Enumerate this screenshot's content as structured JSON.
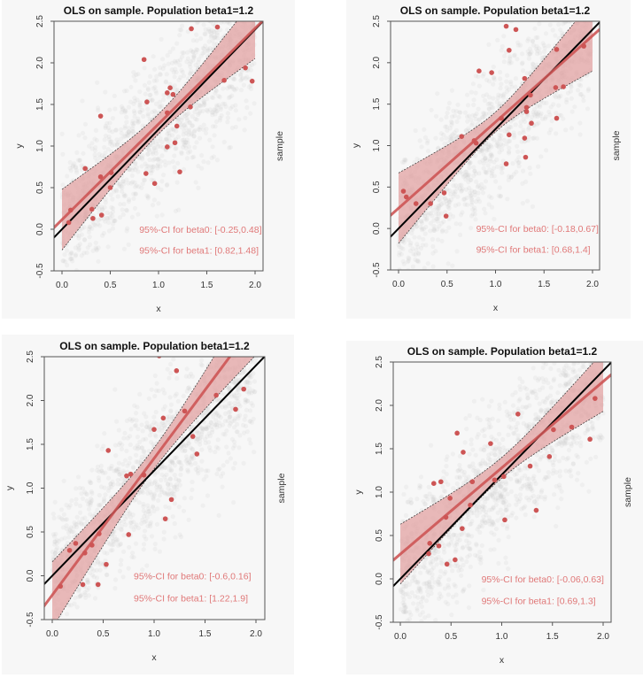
{
  "chart_data": [
    {
      "type": "scatter",
      "title": "OLS on sample. Population beta1=1.2",
      "xlabel": "x",
      "ylabel": "y",
      "right_label": "sample",
      "xlim": [
        -0.08,
        2.08
      ],
      "ylim": [
        -0.5,
        2.5
      ],
      "x_ticks": [
        "0.0",
        "0.5",
        "1.0",
        "1.5",
        "2.0"
      ],
      "y_ticks": [
        "-0.5",
        "0.0",
        "0.5",
        "1.0",
        "1.5",
        "2.0",
        "2.5"
      ],
      "population_line": {
        "beta0": 0,
        "beta1": 1.2
      },
      "fit_line": {
        "beta0": 0.115,
        "beta1": 1.15
      },
      "ci_beta0": [
        -0.25,
        0.48
      ],
      "ci_beta1": [
        0.82,
        1.48
      ],
      "ci_text": [
        "95%-CI for beta0: [-0.25,0.48]",
        "95%-CI for beta1: [0.82,1.48]"
      ],
      "sample": {
        "x": [
          1.34,
          1.61,
          0.85,
          1.9,
          1.97,
          1.68,
          1.12,
          1.09,
          1.15,
          0.88,
          1.33,
          0.4,
          1.09,
          1.19,
          1.09,
          1.17,
          0.24,
          0.87,
          1.22,
          0.96,
          0.5,
          0.4,
          0.51,
          0.31,
          0.32,
          0.41,
          0.09,
          0.07
        ],
        "y": [
          2.41,
          2.43,
          2.04,
          1.94,
          1.78,
          1.79,
          1.7,
          1.64,
          1.62,
          1.53,
          1.47,
          1.36,
          1.4,
          1.24,
          0.99,
          1.04,
          0.73,
          0.67,
          0.69,
          0.55,
          0.5,
          0.63,
          0.68,
          0.24,
          0.13,
          0.17,
          0.23,
          0.08
        ]
      }
    },
    {
      "type": "scatter",
      "title": "OLS on sample. Population beta1=1.2",
      "xlabel": "x",
      "ylabel": "y",
      "right_label": "sample",
      "xlim": [
        -0.08,
        2.08
      ],
      "ylim": [
        -0.5,
        2.5
      ],
      "x_ticks": [
        "0.0",
        "0.5",
        "1.0",
        "1.5",
        "2.0"
      ],
      "y_ticks": [
        "-0.5",
        "0.0",
        "0.5",
        "1.0",
        "1.5",
        "2.0",
        "2.5"
      ],
      "population_line": {
        "beta0": 0,
        "beta1": 1.2
      },
      "fit_line": {
        "beta0": 0.245,
        "beta1": 1.04
      },
      "ci_beta0": [
        -0.18,
        0.67
      ],
      "ci_beta1": [
        0.68,
        1.4
      ],
      "ci_text": [
        "95%-CI for beta0: [-0.18,0.67]",
        "95%-CI for beta1: [0.68,1.4]"
      ],
      "sample": {
        "x": [
          1.11,
          1.21,
          1.14,
          0.83,
          0.96,
          1.63,
          1.91,
          1.3,
          1.62,
          1.7,
          1.36,
          1.32,
          1.32,
          1.37,
          1.63,
          1.06,
          1.14,
          1.3,
          0.65,
          0.78,
          0.8,
          1.31,
          1.11,
          0.05,
          0.08,
          0.18,
          0.33,
          0.47,
          0.49
        ],
        "y": [
          2.44,
          2.4,
          2.15,
          1.9,
          1.88,
          2.16,
          2.2,
          1.81,
          1.7,
          1.71,
          1.61,
          1.46,
          1.41,
          1.27,
          1.33,
          1.33,
          1.13,
          1.09,
          1.11,
          1.06,
          1.03,
          0.86,
          0.78,
          0.45,
          0.38,
          0.3,
          0.3,
          0.43,
          0.15
        ]
      }
    },
    {
      "type": "scatter",
      "title": "OLS on sample. Population beta1=1.2",
      "xlabel": "x",
      "ylabel": "y",
      "right_label": "sample",
      "xlim": [
        -0.08,
        2.08
      ],
      "ylim": [
        -0.5,
        2.5
      ],
      "x_ticks": [
        "0.0",
        "0.5",
        "1.0",
        "1.5",
        "2.0"
      ],
      "y_ticks": [
        "-0.5",
        "0.0",
        "0.5",
        "1.0",
        "1.5",
        "2.0",
        "2.5"
      ],
      "population_line": {
        "beta0": 0,
        "beta1": 1.2
      },
      "fit_line": {
        "beta0": -0.22,
        "beta1": 1.56
      },
      "ci_beta0": [
        -0.6,
        0.16
      ],
      "ci_beta1": [
        1.22,
        1.9
      ],
      "ci_text": [
        "95%-CI for beta0: [-0.6,0.16]",
        "95%-CI for beta1: [1.22,1.9]"
      ],
      "sample": {
        "x": [
          1.05,
          1.22,
          1.61,
          1.88,
          1.8,
          1.3,
          1.09,
          1.0,
          1.38,
          1.42,
          0.55,
          0.77,
          0.73,
          0.9,
          1.17,
          1.11,
          0.75,
          0.46,
          0.39,
          0.23,
          0.17,
          0.32,
          0.53,
          0.3,
          0.45,
          0.08
        ],
        "y": [
          2.51,
          2.34,
          2.06,
          2.13,
          1.9,
          1.88,
          1.8,
          1.67,
          1.59,
          1.39,
          1.43,
          1.16,
          1.14,
          1.15,
          0.87,
          0.65,
          0.47,
          0.48,
          0.35,
          0.37,
          0.29,
          0.26,
          0.13,
          -0.1,
          -0.1,
          -0.12
        ]
      }
    },
    {
      "type": "scatter",
      "title": "OLS on sample. Population beta1=1.2",
      "xlabel": "x",
      "ylabel": "y",
      "right_label": "sample",
      "xlim": [
        -0.08,
        2.08
      ],
      "ylim": [
        -0.5,
        2.5
      ],
      "x_ticks": [
        "0.0",
        "0.5",
        "1.0",
        "1.5",
        "2.0"
      ],
      "y_ticks": [
        "-0.5",
        "0.0",
        "0.5",
        "1.0",
        "1.5",
        "2.0",
        "2.5"
      ],
      "population_line": {
        "beta0": 0,
        "beta1": 1.2
      },
      "fit_line": {
        "beta0": 0.285,
        "beta1": 0.995
      },
      "ci_beta0": [
        -0.06,
        0.63
      ],
      "ci_beta1": [
        0.69,
        1.3
      ],
      "ci_text": [
        "95%-CI for beta0: [-0.06,0.63]",
        "95%-CI for beta1: [0.69,1.3]"
      ],
      "sample": {
        "x": [
          1.92,
          1.16,
          1.51,
          1.69,
          1.87,
          1.47,
          1.28,
          0.56,
          0.89,
          0.62,
          0.33,
          0.4,
          0.71,
          0.93,
          1.02,
          0.49,
          0.69,
          0.45,
          1.03,
          1.34,
          0.61,
          0.29,
          0.38,
          0.28,
          0.46,
          0.54
        ],
        "y": [
          2.08,
          1.9,
          1.72,
          1.75,
          1.61,
          1.41,
          1.3,
          1.68,
          1.56,
          1.46,
          1.1,
          1.12,
          1.12,
          1.14,
          1.18,
          0.93,
          0.85,
          0.71,
          0.68,
          0.79,
          0.58,
          0.41,
          0.38,
          0.29,
          0.17,
          0.22
        ]
      }
    }
  ],
  "colors": {
    "sample_point": "#cd5555",
    "fit_line": "#cd5555",
    "ci_band": "#e3a3a3",
    "ci_text": "#e07878",
    "population_line": "#000000",
    "population_cloud": "#c4c4c4",
    "panel_background": "#f7f7f7"
  }
}
